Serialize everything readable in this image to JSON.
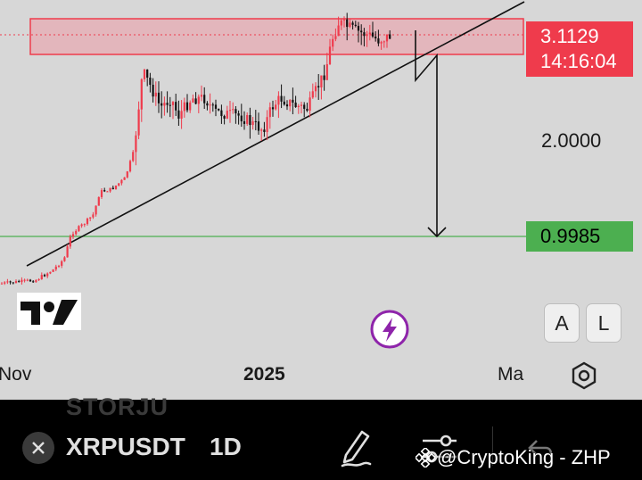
{
  "chart": {
    "current_price": "3.1129",
    "countdown": "14:16:04",
    "scale_level": "2.0000",
    "support_level": "0.9985",
    "axis_labels": [
      "Nov",
      "2025",
      "Ma"
    ],
    "colors": {
      "background": "#d7d7d7",
      "resistance_zone": "#e8a8b0",
      "resistance_border": "#ef3b4c",
      "candle_up": "#ef3b4c",
      "candle_down": "#111111",
      "support_line": "#4caf50",
      "trendline": "#111111"
    }
  },
  "scale_buttons": {
    "auto": "A",
    "log": "L"
  },
  "toolbar": {
    "previous_symbol": "STORJU",
    "symbol": "XRPUSDT",
    "interval": "1D",
    "icons": [
      "close-icon",
      "pencil-icon",
      "indicators-icon",
      "undo-icon",
      "settings-icon",
      "flash-icon"
    ]
  },
  "watermark": "@CryptoKing - ZHP"
}
